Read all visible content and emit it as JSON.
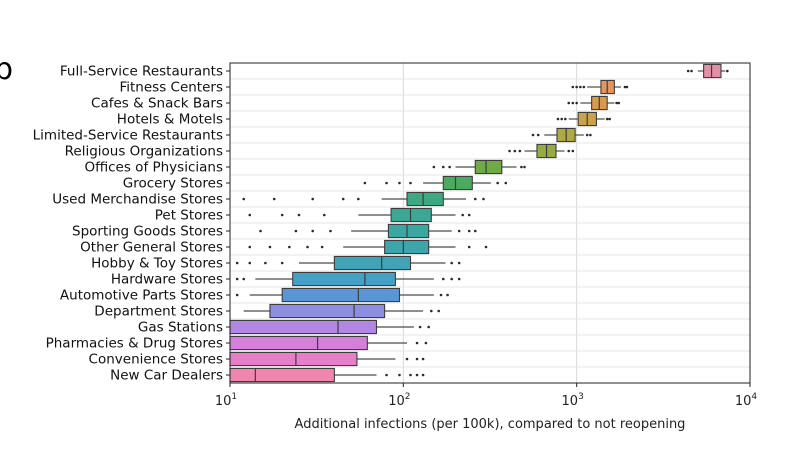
{
  "panel_label": "b",
  "chart_data": {
    "type": "boxplot",
    "orientation": "horizontal",
    "xscale": "log",
    "xlim": [
      10,
      10000
    ],
    "xlabel": "Additional infections (per 100k), compared to not reopening",
    "xticks": [
      {
        "value": 10,
        "base": "10",
        "exp": "1"
      },
      {
        "value": 100,
        "base": "10",
        "exp": "2"
      },
      {
        "value": 1000,
        "base": "10",
        "exp": "3"
      },
      {
        "value": 10000,
        "base": "10",
        "exp": "4"
      }
    ],
    "grid": "vertical",
    "categories": [
      {
        "label": "Full-Service Restaurants",
        "q1": 5400,
        "median": 6000,
        "q3": 6800,
        "wlo": 5000,
        "whi": 7200,
        "flo": [
          4400,
          4600
        ],
        "fhi": [
          7400
        ],
        "color": "#e58fa5"
      },
      {
        "label": "Fitness Centers",
        "q1": 1380,
        "median": 1500,
        "q3": 1650,
        "wlo": 1150,
        "whi": 1800,
        "flo": [
          950,
          1000,
          1050,
          1100
        ],
        "fhi": [
          1900,
          1950
        ],
        "color": "#e4945e"
      },
      {
        "label": "Cafes & Snack Bars",
        "q1": 1220,
        "median": 1350,
        "q3": 1500,
        "wlo": 1050,
        "whi": 1650,
        "flo": [
          900,
          950,
          1000
        ],
        "fhi": [
          1700,
          1750
        ],
        "color": "#d99a4e"
      },
      {
        "label": "Hotels & Motels",
        "q1": 1020,
        "median": 1150,
        "q3": 1300,
        "wlo": 900,
        "whi": 1450,
        "flo": [
          780,
          820,
          860
        ],
        "fhi": [
          1500,
          1550
        ],
        "color": "#c9a24a"
      },
      {
        "label": "Limited-Service Restaurants",
        "q1": 770,
        "median": 870,
        "q3": 980,
        "wlo": 650,
        "whi": 1100,
        "flo": [
          560,
          600
        ],
        "fhi": [
          1150,
          1200
        ],
        "color": "#b1a844"
      },
      {
        "label": "Religious Organizations",
        "q1": 590,
        "median": 670,
        "q3": 760,
        "wlo": 500,
        "whi": 850,
        "flo": [
          410,
          440,
          470
        ],
        "fhi": [
          900,
          950
        ],
        "color": "#97ab43"
      },
      {
        "label": "Offices of Physicians",
        "q1": 260,
        "median": 300,
        "q3": 370,
        "wlo": 200,
        "whi": 450,
        "flo": [
          150,
          170,
          185
        ],
        "fhi": [
          480,
          500
        ],
        "color": "#6faa45"
      },
      {
        "label": "Grocery Stores",
        "q1": 170,
        "median": 200,
        "q3": 250,
        "wlo": 130,
        "whi": 320,
        "flo": [
          60,
          80,
          95,
          110
        ],
        "fhi": [
          350,
          390
        ],
        "color": "#4aaa5e"
      },
      {
        "label": "Used Merchandise Stores",
        "q1": 105,
        "median": 130,
        "q3": 170,
        "wlo": 75,
        "whi": 230,
        "flo": [
          12,
          18,
          30,
          45,
          55
        ],
        "fhi": [
          260,
          290
        ],
        "color": "#3da982"
      },
      {
        "label": "Pet Stores",
        "q1": 85,
        "median": 110,
        "q3": 145,
        "wlo": 55,
        "whi": 200,
        "flo": [
          13,
          20,
          25,
          35
        ],
        "fhi": [
          220,
          240
        ],
        "color": "#3aa895"
      },
      {
        "label": "Sporting Goods Stores",
        "q1": 82,
        "median": 105,
        "q3": 140,
        "wlo": 50,
        "whi": 190,
        "flo": [
          15,
          24,
          30,
          38
        ],
        "fhi": [
          210,
          240,
          260
        ],
        "color": "#3ba7a3"
      },
      {
        "label": "Other General Stores",
        "q1": 78,
        "median": 100,
        "q3": 140,
        "wlo": 45,
        "whi": 200,
        "flo": [
          13,
          17,
          22,
          28,
          34
        ],
        "fhi": [
          240,
          300
        ],
        "color": "#3da6ad"
      },
      {
        "label": "Hobby & Toy Stores",
        "q1": 40,
        "median": 75,
        "q3": 110,
        "wlo": 25,
        "whi": 175,
        "flo": [
          11,
          13,
          16,
          20
        ],
        "fhi": [
          190,
          210
        ],
        "color": "#40a3b8"
      },
      {
        "label": "Hardware Stores",
        "q1": 23,
        "median": 60,
        "q3": 90,
        "wlo": 14,
        "whi": 150,
        "flo": [
          11,
          12
        ],
        "fhi": [
          170,
          190,
          210
        ],
        "color": "#45a0c5"
      },
      {
        "label": "Automotive Parts Stores",
        "q1": 20,
        "median": 55,
        "q3": 95,
        "wlo": 13,
        "whi": 150,
        "flo": [
          11
        ],
        "fhi": [
          165,
          180
        ],
        "color": "#5a96d6"
      },
      {
        "label": "Department Stores",
        "q1": 17,
        "median": 52,
        "q3": 78,
        "wlo": 12,
        "whi": 130,
        "flo": [],
        "fhi": [
          145,
          160
        ],
        "color": "#8c8fdf"
      },
      {
        "label": "Gas Stations",
        "q1": 10,
        "median": 42,
        "q3": 70,
        "wlo": 10,
        "whi": 115,
        "flo": [],
        "fhi": [
          125,
          140
        ],
        "color": "#b286e3"
      },
      {
        "label": "Pharmacies & Drug Stores",
        "q1": 10,
        "median": 32,
        "q3": 62,
        "wlo": 10,
        "whi": 105,
        "flo": [],
        "fhi": [
          120,
          135
        ],
        "color": "#d57fdb"
      },
      {
        "label": "Convenience Stores",
        "q1": 10,
        "median": 24,
        "q3": 54,
        "wlo": 10,
        "whi": 90,
        "flo": [],
        "fhi": [
          105,
          120,
          130
        ],
        "color": "#e67fc7"
      },
      {
        "label": "New Car Dealers",
        "q1": 10,
        "median": 14,
        "q3": 40,
        "wlo": 10,
        "whi": 70,
        "flo": [],
        "fhi": [
          80,
          95,
          110,
          120,
          130
        ],
        "color": "#ee86b0"
      }
    ]
  }
}
